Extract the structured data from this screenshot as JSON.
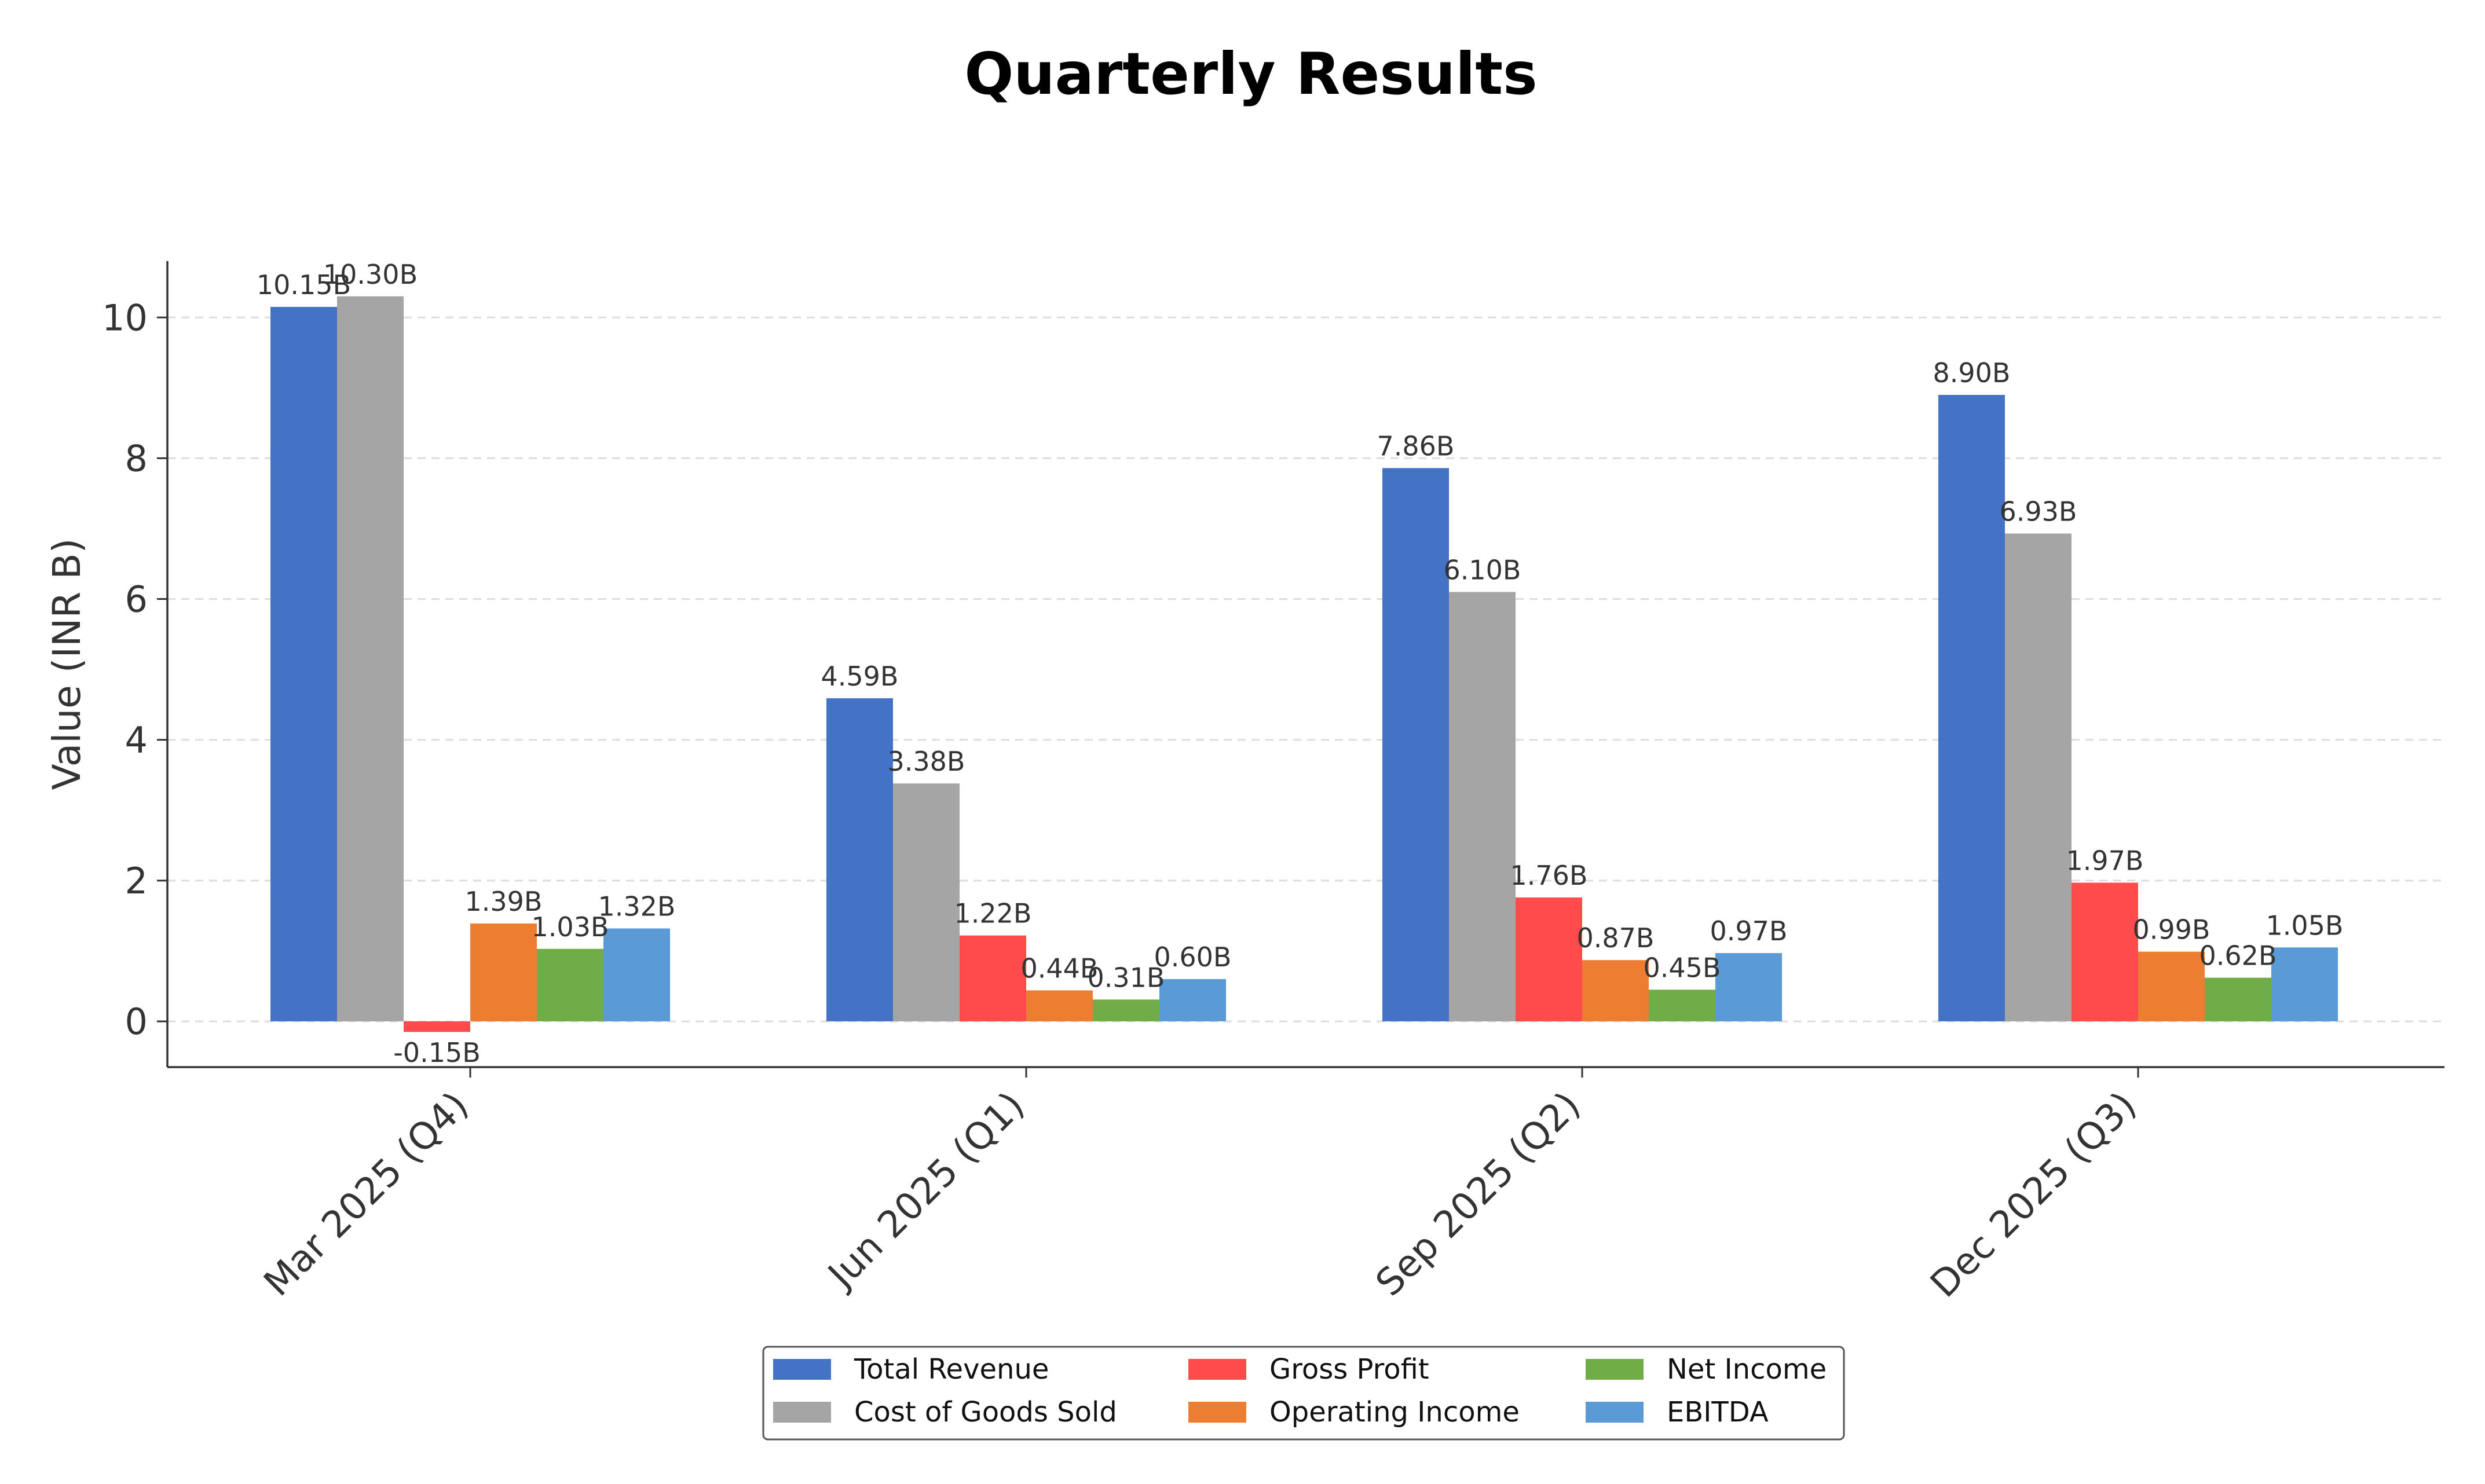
{
  "chart_data": {
    "type": "bar",
    "title": "Quarterly Results",
    "ylabel": "Value (INR B)",
    "xlabel": "",
    "categories": [
      "Mar 2025 (Q4)",
      "Jun 2025 (Q1)",
      "Sep 2025 (Q2)",
      "Dec 2025 (Q3)"
    ],
    "ylim": [
      -0.65,
      10.8
    ],
    "yticks": [
      0,
      2,
      4,
      6,
      8,
      10
    ],
    "grid": true,
    "legend_position": "bottom-center",
    "series": [
      {
        "name": "Total Revenue",
        "color": "#4472C4",
        "values": [
          10.15,
          4.59,
          7.86,
          8.9
        ],
        "labels": [
          "10.15B",
          "4.59B",
          "7.86B",
          "8.90B"
        ]
      },
      {
        "name": "Cost of Goods Sold",
        "color": "#A5A5A5",
        "values": [
          10.3,
          3.38,
          6.1,
          6.93
        ],
        "labels": [
          "10.30B",
          "3.38B",
          "6.10B",
          "6.93B"
        ]
      },
      {
        "name": "Gross Profit",
        "color": "#FF4B4B",
        "values": [
          -0.15,
          1.22,
          1.76,
          1.97
        ],
        "labels": [
          "-0.15B",
          "1.22B",
          "1.76B",
          "1.97B"
        ]
      },
      {
        "name": "Operating Income",
        "color": "#ED7D31",
        "values": [
          1.39,
          0.44,
          0.87,
          0.99
        ],
        "labels": [
          "1.39B",
          "0.44B",
          "0.87B",
          "0.99B"
        ]
      },
      {
        "name": "Net Income",
        "color": "#70AD47",
        "values": [
          1.03,
          0.31,
          0.45,
          0.62
        ],
        "labels": [
          "1.03B",
          "0.31B",
          "0.45B",
          "0.62B"
        ]
      },
      {
        "name": "EBITDA",
        "color": "#5B9BD5",
        "values": [
          1.32,
          0.6,
          0.97,
          1.05
        ],
        "labels": [
          "1.32B",
          "0.60B",
          "0.97B",
          "1.05B"
        ]
      }
    ]
  }
}
